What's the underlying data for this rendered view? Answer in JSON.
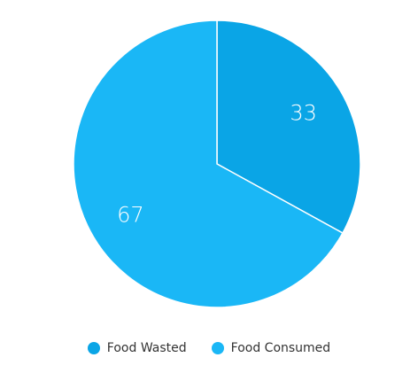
{
  "chart_data": {
    "type": "pie",
    "title": "",
    "slices": [
      {
        "label": "Food Wasted",
        "value": 33,
        "color": "#0aa5e6"
      },
      {
        "label": "Food Consumed",
        "value": 67,
        "color": "#1ab7f6"
      }
    ],
    "start_angle_deg": 0,
    "direction": "clockwise",
    "show_data_labels": true,
    "legend_position": "bottom"
  },
  "legend": {
    "items": [
      {
        "label": "Food Wasted",
        "color": "#0aa5e6"
      },
      {
        "label": "Food Consumed",
        "color": "#1ab7f6"
      }
    ]
  }
}
